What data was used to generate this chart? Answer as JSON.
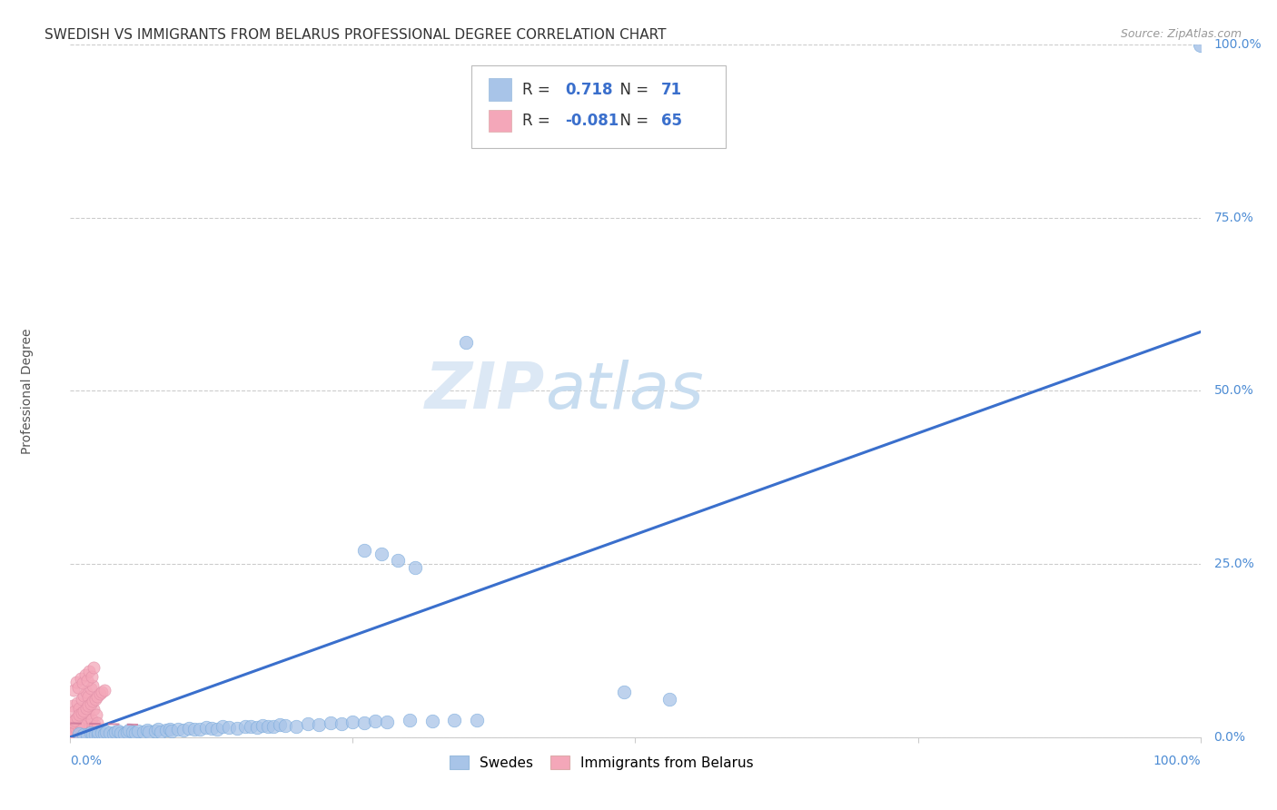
{
  "title": "SWEDISH VS IMMIGRANTS FROM BELARUS PROFESSIONAL DEGREE CORRELATION CHART",
  "source": "Source: ZipAtlas.com",
  "ylabel": "Professional Degree",
  "xlim": [
    0,
    1.0
  ],
  "ylim": [
    0,
    1.0
  ],
  "stat_box": {
    "blue_R": 0.718,
    "blue_N": 71,
    "pink_R": -0.081,
    "pink_N": 65
  },
  "blue_color": "#a8c4e8",
  "pink_color": "#f4a7b9",
  "blue_line_color": "#3a6fcc",
  "pink_line_color": "#cc7799",
  "blue_regression": [
    0.0,
    0.0,
    1.0,
    0.585
  ],
  "pink_regression": [
    0.0,
    0.02,
    0.06,
    0.018
  ],
  "blue_x": [
    0.008,
    0.012,
    0.015,
    0.018,
    0.02,
    0.022,
    0.025,
    0.025,
    0.028,
    0.03,
    0.032,
    0.035,
    0.038,
    0.04,
    0.042,
    0.045,
    0.048,
    0.05,
    0.052,
    0.055,
    0.058,
    0.06,
    0.065,
    0.068,
    0.07,
    0.075,
    0.078,
    0.08,
    0.085,
    0.088,
    0.09,
    0.095,
    0.1,
    0.105,
    0.11,
    0.115,
    0.12,
    0.125,
    0.13,
    0.135,
    0.14,
    0.148,
    0.155,
    0.16,
    0.165,
    0.17,
    0.175,
    0.18,
    0.185,
    0.19,
    0.2,
    0.21,
    0.22,
    0.23,
    0.24,
    0.25,
    0.26,
    0.27,
    0.28,
    0.3,
    0.32,
    0.34,
    0.36,
    0.26,
    0.275,
    0.29,
    0.305,
    0.49,
    0.53,
    0.35,
    1.0
  ],
  "blue_y": [
    0.005,
    0.003,
    0.004,
    0.006,
    0.005,
    0.004,
    0.003,
    0.007,
    0.006,
    0.005,
    0.008,
    0.006,
    0.005,
    0.007,
    0.009,
    0.006,
    0.005,
    0.008,
    0.01,
    0.007,
    0.006,
    0.009,
    0.008,
    0.01,
    0.007,
    0.009,
    0.011,
    0.008,
    0.01,
    0.012,
    0.009,
    0.011,
    0.01,
    0.013,
    0.012,
    0.011,
    0.014,
    0.013,
    0.012,
    0.015,
    0.014,
    0.013,
    0.016,
    0.015,
    0.014,
    0.017,
    0.016,
    0.015,
    0.018,
    0.017,
    0.016,
    0.019,
    0.018,
    0.02,
    0.019,
    0.022,
    0.021,
    0.023,
    0.022,
    0.024,
    0.023,
    0.025,
    0.024,
    0.27,
    0.265,
    0.255,
    0.245,
    0.065,
    0.055,
    0.57,
    1.0
  ],
  "pink_x": [
    0.001,
    0.002,
    0.003,
    0.004,
    0.005,
    0.006,
    0.007,
    0.008,
    0.009,
    0.01,
    0.011,
    0.012,
    0.013,
    0.014,
    0.015,
    0.016,
    0.017,
    0.018,
    0.019,
    0.02,
    0.021,
    0.022,
    0.023,
    0.024,
    0.025,
    0.002,
    0.004,
    0.006,
    0.008,
    0.01,
    0.012,
    0.014,
    0.016,
    0.018,
    0.02,
    0.003,
    0.005,
    0.007,
    0.009,
    0.011,
    0.013,
    0.015,
    0.017,
    0.019,
    0.021,
    0.001,
    0.003,
    0.005,
    0.007,
    0.009,
    0.002,
    0.004,
    0.006,
    0.008,
    0.01,
    0.012,
    0.014,
    0.016,
    0.018,
    0.02,
    0.022,
    0.024,
    0.026,
    0.028,
    0.03
  ],
  "pink_y": [
    0.02,
    0.015,
    0.012,
    0.025,
    0.018,
    0.022,
    0.01,
    0.03,
    0.016,
    0.008,
    0.024,
    0.014,
    0.019,
    0.028,
    0.011,
    0.035,
    0.013,
    0.009,
    0.026,
    0.007,
    0.04,
    0.017,
    0.032,
    0.021,
    0.006,
    0.045,
    0.038,
    0.05,
    0.042,
    0.055,
    0.06,
    0.065,
    0.058,
    0.07,
    0.075,
    0.068,
    0.08,
    0.072,
    0.085,
    0.078,
    0.09,
    0.082,
    0.095,
    0.088,
    0.1,
    0.005,
    0.008,
    0.012,
    0.015,
    0.018,
    0.022,
    0.025,
    0.028,
    0.032,
    0.035,
    0.038,
    0.042,
    0.045,
    0.048,
    0.052,
    0.055,
    0.058,
    0.062,
    0.065,
    0.068
  ]
}
